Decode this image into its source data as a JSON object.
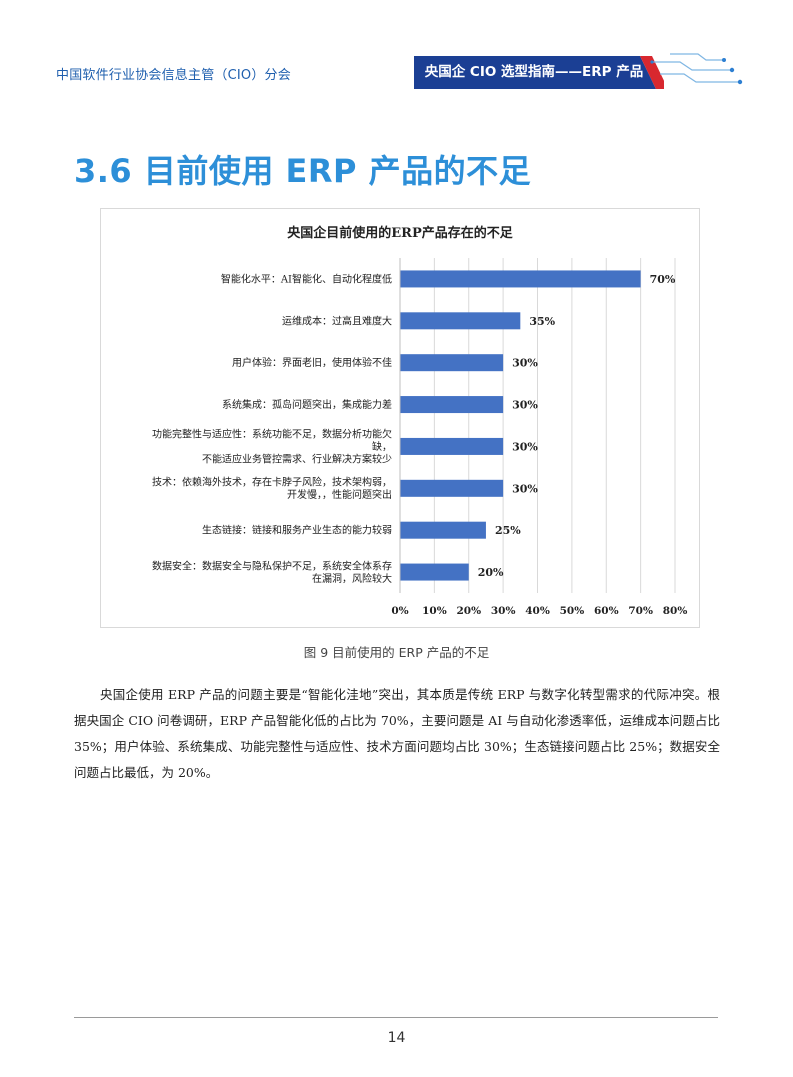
{
  "header": {
    "org": "中国软件行业协会信息主管（CIO）分会",
    "guide_title": "央国企 CIO 选型指南——ERP 产品"
  },
  "colors": {
    "banner_blue": "#1b3f94",
    "banner_red": "#d8282f",
    "title_blue": "#2d8fd8",
    "bar_blue": "#4472c4"
  },
  "section": {
    "title": "3.6 目前使用 ERP 产品的不足"
  },
  "chart_data": {
    "type": "bar",
    "orientation": "horizontal",
    "title": "央国企目前使用的ERP产品存在的不足",
    "categories": [
      [
        "智能化水平：AI智能化、自动化程度低"
      ],
      [
        "运维成本：过高且难度大"
      ],
      [
        "用户体验：界面老旧，使用体验不佳"
      ],
      [
        "系统集成：孤岛问题突出，集成能力差"
      ],
      [
        "功能完整性与适应性：系统功能不足，数据分析功能欠",
        "缺，",
        "不能适应业务管控需求、行业解决方案较少"
      ],
      [
        "技术：依赖海外技术，存在卡脖子风险，技术架构弱，",
        "开发慢，，性能问题突出"
      ],
      [
        "生态链接：链接和服务产业生态的能力较弱"
      ],
      [
        "数据安全：数据安全与隐私保护不足，系统安全体系存",
        "在漏洞，风险较大"
      ]
    ],
    "values": [
      70,
      35,
      30,
      30,
      30,
      30,
      25,
      20
    ],
    "value_labels": [
      "70%",
      "35%",
      "30%",
      "30%",
      "30%",
      "30%",
      "25%",
      "20%"
    ],
    "x_ticks": [
      "0%",
      "10%",
      "20%",
      "30%",
      "40%",
      "50%",
      "60%",
      "70%",
      "80%"
    ],
    "xlim": [
      0,
      80
    ],
    "grid": true,
    "legend": "none"
  },
  "figure": {
    "caption": "图 9 目前使用的 ERP 产品的不足"
  },
  "body": {
    "paragraph": "央国企使用 ERP 产品的问题主要是“智能化洼地”突出，其本质是传统 ERP 与数字化转型需求的代际冲突。根据央国企 CIO 问卷调研，ERP 产品智能化低的占比为 70%，主要问题是 AI 与自动化渗透率低，运维成本问题占比 35%；用户体验、系统集成、功能完整性与适应性、技术方面问题均占比 30%；生态链接问题占比 25%；数据安全问题占比最低，为 20%。"
  },
  "footer": {
    "page_number": "14"
  }
}
